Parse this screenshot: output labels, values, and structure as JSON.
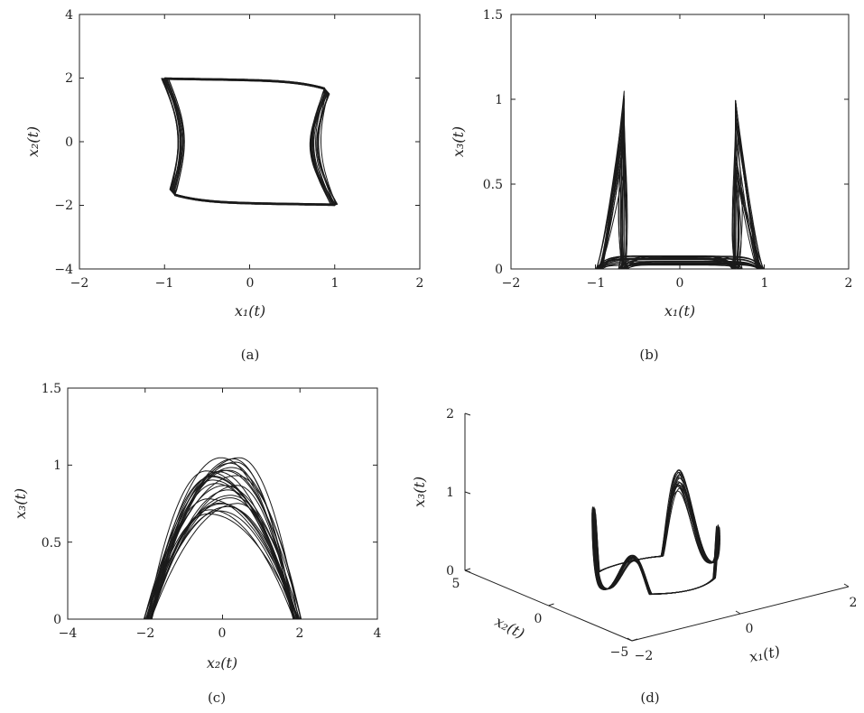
{
  "chart_data": [
    {
      "id": "a",
      "type": "line",
      "panel_label": "(a)",
      "xlabel": "x₁(t)",
      "ylabel": "x₂(t)",
      "xlim": [
        -2,
        2
      ],
      "ylim": [
        -4,
        4
      ],
      "xticks": [
        "−2",
        "−1",
        "0",
        "1",
        "2"
      ],
      "xtick_values": [
        -2,
        -1,
        0,
        1,
        2
      ],
      "yticks": [
        "−4",
        "−2",
        "0",
        "2",
        "4"
      ],
      "ytick_values": [
        -4,
        -2,
        0,
        2,
        4
      ],
      "series": [
        {
          "x_range": [
            -1,
            1
          ],
          "y_range": [
            -2,
            2
          ],
          "path": [
            [
              -1.0,
              2.0
            ],
            [
              0.0,
              1.9
            ],
            [
              0.9,
              1.5
            ],
            [
              0.82,
              0.3
            ],
            [
              0.85,
              -1.0
            ],
            [
              1.0,
              -2.0
            ],
            [
              0.0,
              -1.9
            ],
            [
              -0.9,
              -1.5
            ],
            [
              -0.82,
              -0.3
            ],
            [
              -0.85,
              1.0
            ],
            [
              -1.0,
              2.0
            ]
          ]
        }
      ]
    },
    {
      "id": "b",
      "type": "line",
      "panel_label": "(b)",
      "xlabel": "x₁(t)",
      "ylabel": "x₃(t)",
      "xlim": [
        -2,
        2
      ],
      "ylim": [
        0,
        1.5
      ],
      "xticks": [
        "−2",
        "−1",
        "0",
        "1",
        "2"
      ],
      "xtick_values": [
        -2,
        -1,
        0,
        1,
        2
      ],
      "yticks": [
        "0",
        "0.5",
        "1",
        "1.5"
      ],
      "ytick_values": [
        0,
        0.5,
        1,
        1.5
      ],
      "series": [
        {
          "x_range": [
            -1,
            1
          ],
          "y_range": [
            0,
            1.05
          ],
          "path": [
            [
              -1.0,
              0.0
            ],
            [
              -0.8,
              0.6
            ],
            [
              -0.65,
              1.05
            ],
            [
              -0.72,
              0.3
            ],
            [
              -0.5,
              0.05
            ],
            [
              0.0,
              0.04
            ],
            [
              0.5,
              0.05
            ],
            [
              0.72,
              0.3
            ],
            [
              0.65,
              1.05
            ],
            [
              0.8,
              0.6
            ],
            [
              1.0,
              0.0
            ]
          ]
        }
      ]
    },
    {
      "id": "c",
      "type": "line",
      "panel_label": "(c)",
      "xlabel": "x₂(t)",
      "ylabel": "x₃(t)",
      "xlim": [
        -4,
        4
      ],
      "ylim": [
        0,
        1.5
      ],
      "xticks": [
        "−4",
        "−2",
        "0",
        "2",
        "4"
      ],
      "xtick_values": [
        -4,
        -2,
        0,
        2,
        4
      ],
      "yticks": [
        "0",
        "0.5",
        "1",
        "1.5"
      ],
      "ytick_values": [
        0,
        0.5,
        1,
        1.5
      ],
      "series": [
        {
          "x_range": [
            -2,
            2
          ],
          "y_range": [
            0,
            1.05
          ],
          "path": [
            [
              -2.0,
              0.0
            ],
            [
              -1.0,
              0.7
            ],
            [
              -0.4,
              1.05
            ],
            [
              0.4,
              1.0
            ],
            [
              1.2,
              0.6
            ],
            [
              2.0,
              0.0
            ]
          ]
        }
      ]
    },
    {
      "id": "d",
      "type": "line",
      "panel_label": "(d)",
      "projection": "3d",
      "xlabel": "x₁(t)",
      "ylabel": "x₂(t)",
      "zlabel": "x₃(t)",
      "xlim": [
        -2,
        2
      ],
      "ylim": [
        -5,
        5
      ],
      "zlim": [
        0,
        2
      ],
      "xticks": [
        "−2",
        "0",
        "2"
      ],
      "xtick_values": [
        -2,
        0,
        2
      ],
      "yticks": [
        "−5",
        "0",
        "5"
      ],
      "ytick_values": [
        -5,
        0,
        5
      ],
      "zticks": [
        "0",
        "1",
        "2"
      ],
      "ztick_values": [
        0,
        1,
        2
      ],
      "series": [
        {
          "x_range": [
            -1,
            1
          ],
          "y_range": [
            -2,
            2
          ],
          "z_range": [
            0,
            1.05
          ]
        }
      ]
    }
  ]
}
